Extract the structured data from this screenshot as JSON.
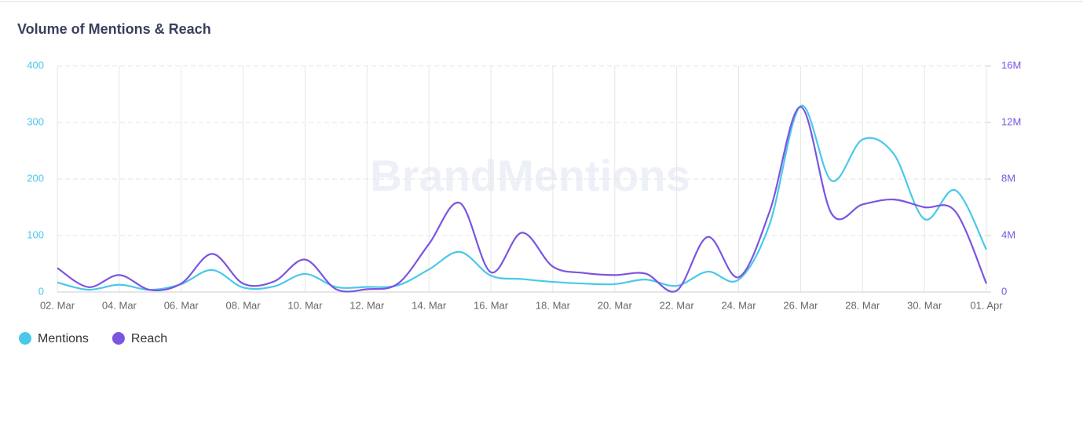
{
  "chart_data": {
    "type": "line",
    "title": "Volume of Mentions & Reach",
    "watermark": "BrandMentions",
    "categories": [
      "02. Mar",
      null,
      "04. Mar",
      null,
      "06. Mar",
      null,
      "08. Mar",
      null,
      "10. Mar",
      null,
      "12. Mar",
      null,
      "14. Mar",
      null,
      "16. Mar",
      null,
      "18. Mar",
      null,
      "20. Mar",
      null,
      "22. Mar",
      null,
      "24. Mar",
      null,
      "26. Mar",
      null,
      "28. Mar",
      null,
      "30. Mar",
      null,
      "01. Apr"
    ],
    "series": [
      {
        "name": "Mentions",
        "color": "#4ac8ea",
        "values": [
          17,
          4,
          13,
          4,
          14,
          39,
          8,
          10,
          32,
          9,
          9,
          12,
          40,
          71,
          29,
          23,
          18,
          15,
          14,
          22,
          11,
          36,
          22,
          120,
          329,
          197,
          270,
          245,
          129,
          180,
          75
        ]
      },
      {
        "name": "Reach",
        "color": "#7b55e0",
        "axis": "y2",
        "values": [
          1700000,
          350000,
          1200000,
          150000,
          600000,
          2700000,
          600000,
          750000,
          2300000,
          200000,
          200000,
          600000,
          3400000,
          6300000,
          1400000,
          4200000,
          1800000,
          1350000,
          1200000,
          1300000,
          100000,
          3900000,
          1050000,
          5700000,
          13100000,
          5550000,
          6200000,
          6550000,
          6000000,
          5700000,
          600000
        ]
      }
    ],
    "ylim": [
      0,
      400
    ],
    "yticks": [
      0,
      100,
      200,
      300,
      400
    ],
    "y2lim": [
      0,
      16000000
    ],
    "y2ticks": [
      {
        "value": 0,
        "label": "0"
      },
      {
        "value": 4000000,
        "label": "4M"
      },
      {
        "value": 8000000,
        "label": "8M"
      },
      {
        "value": 12000000,
        "label": "12M"
      },
      {
        "value": 16000000,
        "label": "16M"
      }
    ],
    "grid": true,
    "smooth": true,
    "legend": "bottom-left"
  }
}
